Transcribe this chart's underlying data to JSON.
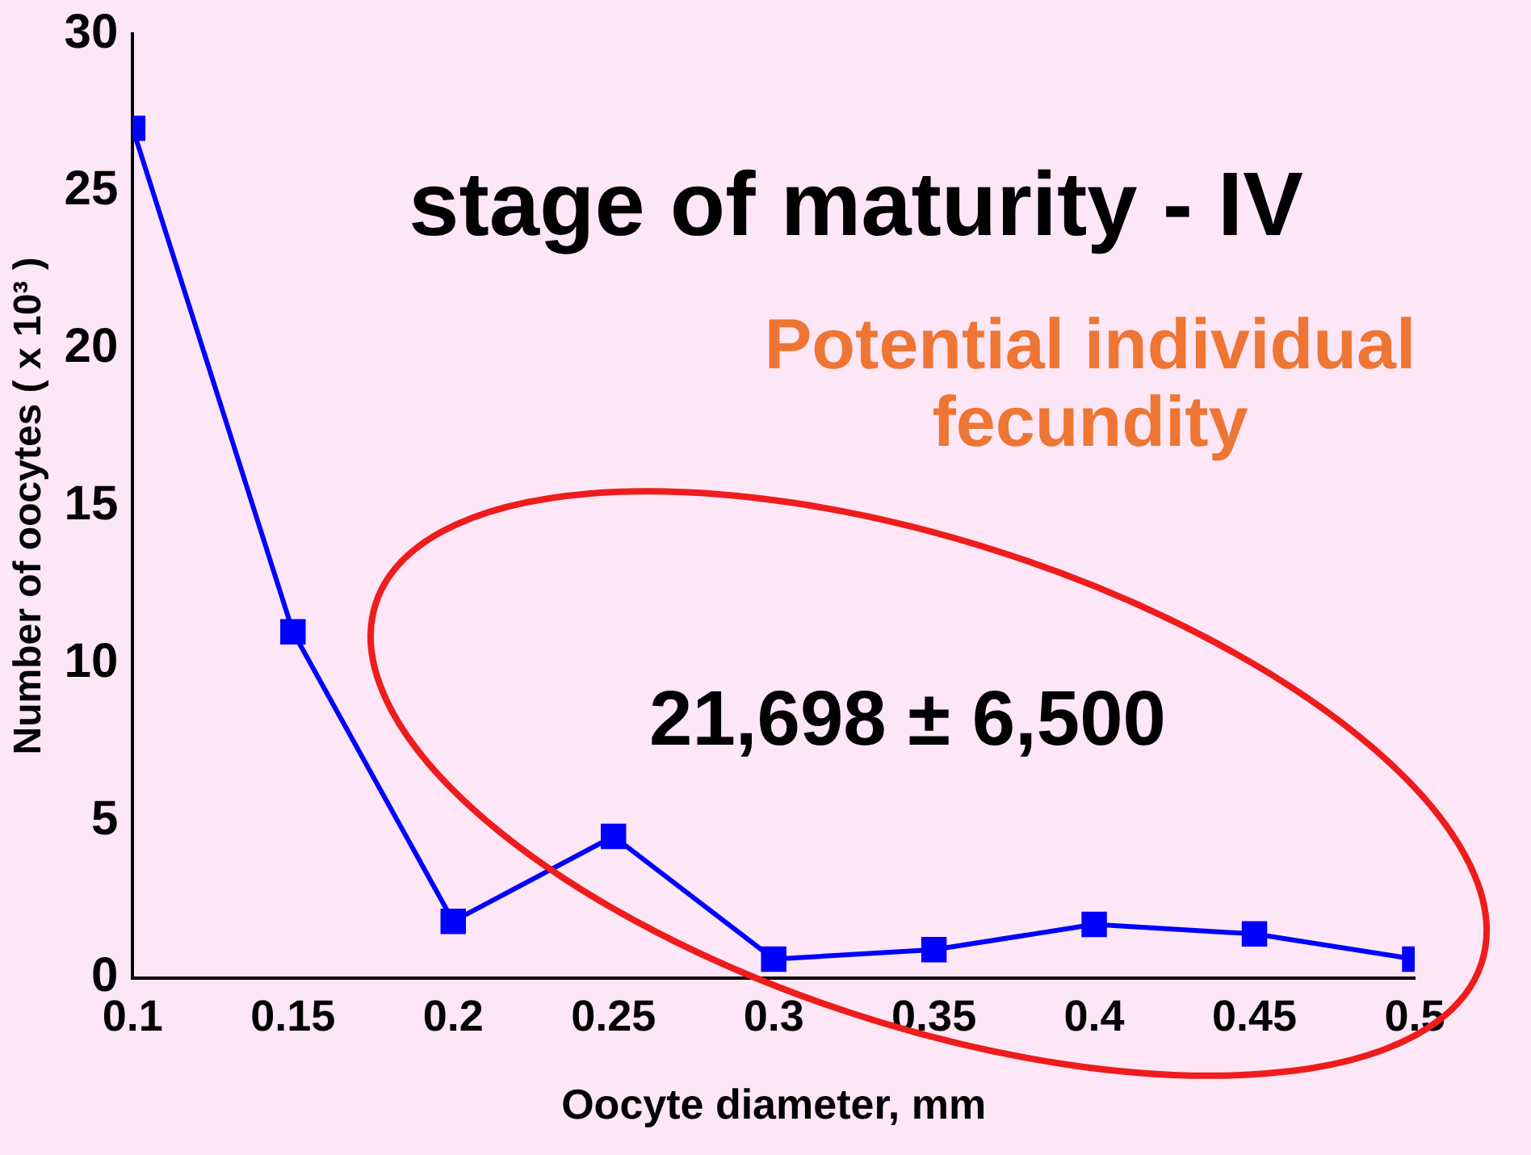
{
  "chart_data": {
    "type": "line",
    "xlabel": "Oocyte diameter, mm",
    "ylabel": "Number of oocytes ( x 10³ )",
    "x": [
      0.1,
      0.15,
      0.2,
      0.25,
      0.3,
      0.35,
      0.4,
      0.45,
      0.5
    ],
    "series": [
      {
        "color": "#0000ff",
        "values": [
          27,
          11,
          1.8,
          4.5,
          0.6,
          0.9,
          1.7,
          1.4,
          0.6
        ]
      }
    ],
    "xlim": [
      0.1,
      0.5
    ],
    "xticks": [
      0.1,
      0.15,
      0.2,
      0.25,
      0.3,
      0.35,
      0.4,
      0.45,
      0.5
    ],
    "ylim": [
      0,
      30
    ],
    "yticks": [
      0,
      5,
      10,
      15,
      20,
      25,
      30
    ],
    "annotations": [
      "stage of maturity - IV",
      "Potential individual fecundity",
      "21,698 ± 6,500"
    ],
    "marker": "square",
    "line_style": "solid",
    "grid": false,
    "legend": false
  }
}
